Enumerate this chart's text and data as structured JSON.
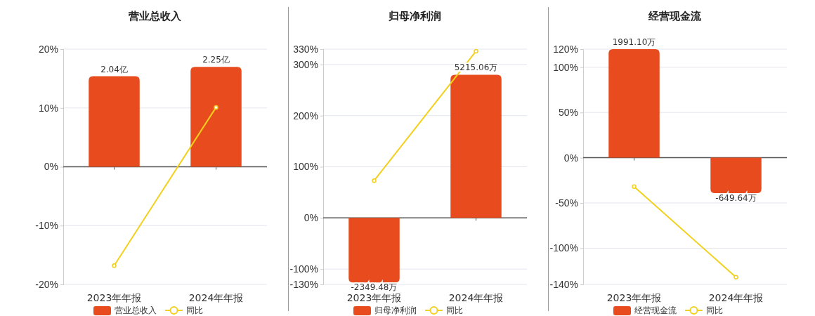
{
  "chart_data": [
    {
      "type": "bar",
      "title": "营业总收入",
      "categories": [
        "2023年年报",
        "2024年年报"
      ],
      "series": [
        {
          "name": "营业总收入",
          "color": "#e84c1e",
          "axis": "y2",
          "values": [
            2.04,
            2.25
          ],
          "value_labels": [
            "2.04亿",
            "2.25亿"
          ]
        },
        {
          "name": "同比",
          "type": "line",
          "color": "#f2d01c",
          "values": [
            -16.8,
            10.1
          ]
        }
      ],
      "ylim": [
        -20,
        20
      ],
      "yticks": [
        {
          "value": -20,
          "label": "-20%"
        },
        {
          "value": -10,
          "label": "-10%"
        },
        {
          "value": 0,
          "label": "0%"
        },
        {
          "value": 10,
          "label": "10%"
        },
        {
          "value": 20,
          "label": "20%"
        }
      ],
      "y2lim": [
        -2.65,
        2.65
      ],
      "ref_lines": [
        {
          "axis": "y",
          "value": 0,
          "color": "#555555"
        }
      ],
      "grid": "y",
      "legend": "bottom",
      "marker": "circle"
    },
    {
      "type": "bar",
      "title": "归母净利润",
      "categories": [
        "2023年年报",
        "2024年年报"
      ],
      "series": [
        {
          "name": "归母净利润",
          "color": "#e84c1e",
          "axis": "y2",
          "values": [
            -2349.48,
            5215.06
          ],
          "value_labels": [
            "-2349.48万",
            "5215.06万"
          ]
        },
        {
          "name": "同比",
          "type": "line",
          "color": "#f2d01c",
          "values": [
            73,
            326
          ]
        }
      ],
      "ylim": [
        -130,
        330
      ],
      "yticks": [
        {
          "value": -130,
          "label": "-130%"
        },
        {
          "value": -100,
          "label": "-100%"
        },
        {
          "value": 0,
          "label": "0%"
        },
        {
          "value": 100,
          "label": "100%"
        },
        {
          "value": 200,
          "label": "200%"
        },
        {
          "value": 300,
          "label": "300%"
        },
        {
          "value": 330,
          "label": "330%"
        }
      ],
      "y2lim": [
        -2422,
        6147
      ],
      "ref_lines": [
        {
          "axis": "y",
          "value": 0,
          "color": "#555555"
        }
      ],
      "grid": "y",
      "legend": "bottom",
      "marker": "circle"
    },
    {
      "type": "bar",
      "title": "经营现金流",
      "categories": [
        "2023年年报",
        "2024年年报"
      ],
      "series": [
        {
          "name": "经营现金流",
          "color": "#e84c1e",
          "axis": "y2",
          "values": [
            1991.1,
            -649.64
          ],
          "value_labels": [
            "1991.10万",
            "-649.64万"
          ]
        },
        {
          "name": "同比",
          "type": "line",
          "color": "#f2d01c",
          "values": [
            -32,
            -132
          ]
        }
      ],
      "ylim": [
        -140,
        120
      ],
      "yticks": [
        {
          "value": -140,
          "label": "-140%"
        },
        {
          "value": -100,
          "label": "-100%"
        },
        {
          "value": -50,
          "label": "-50%"
        },
        {
          "value": 0,
          "label": "0%"
        },
        {
          "value": 50,
          "label": "50%"
        },
        {
          "value": 100,
          "label": "100%"
        },
        {
          "value": 120,
          "label": "120%"
        }
      ],
      "y2lim": [
        -2323,
        1991.1
      ],
      "ref_lines": [
        {
          "axis": "y",
          "value": 0,
          "color": "#555555"
        }
      ],
      "grid": "y",
      "legend": "bottom",
      "marker": "circle"
    }
  ]
}
